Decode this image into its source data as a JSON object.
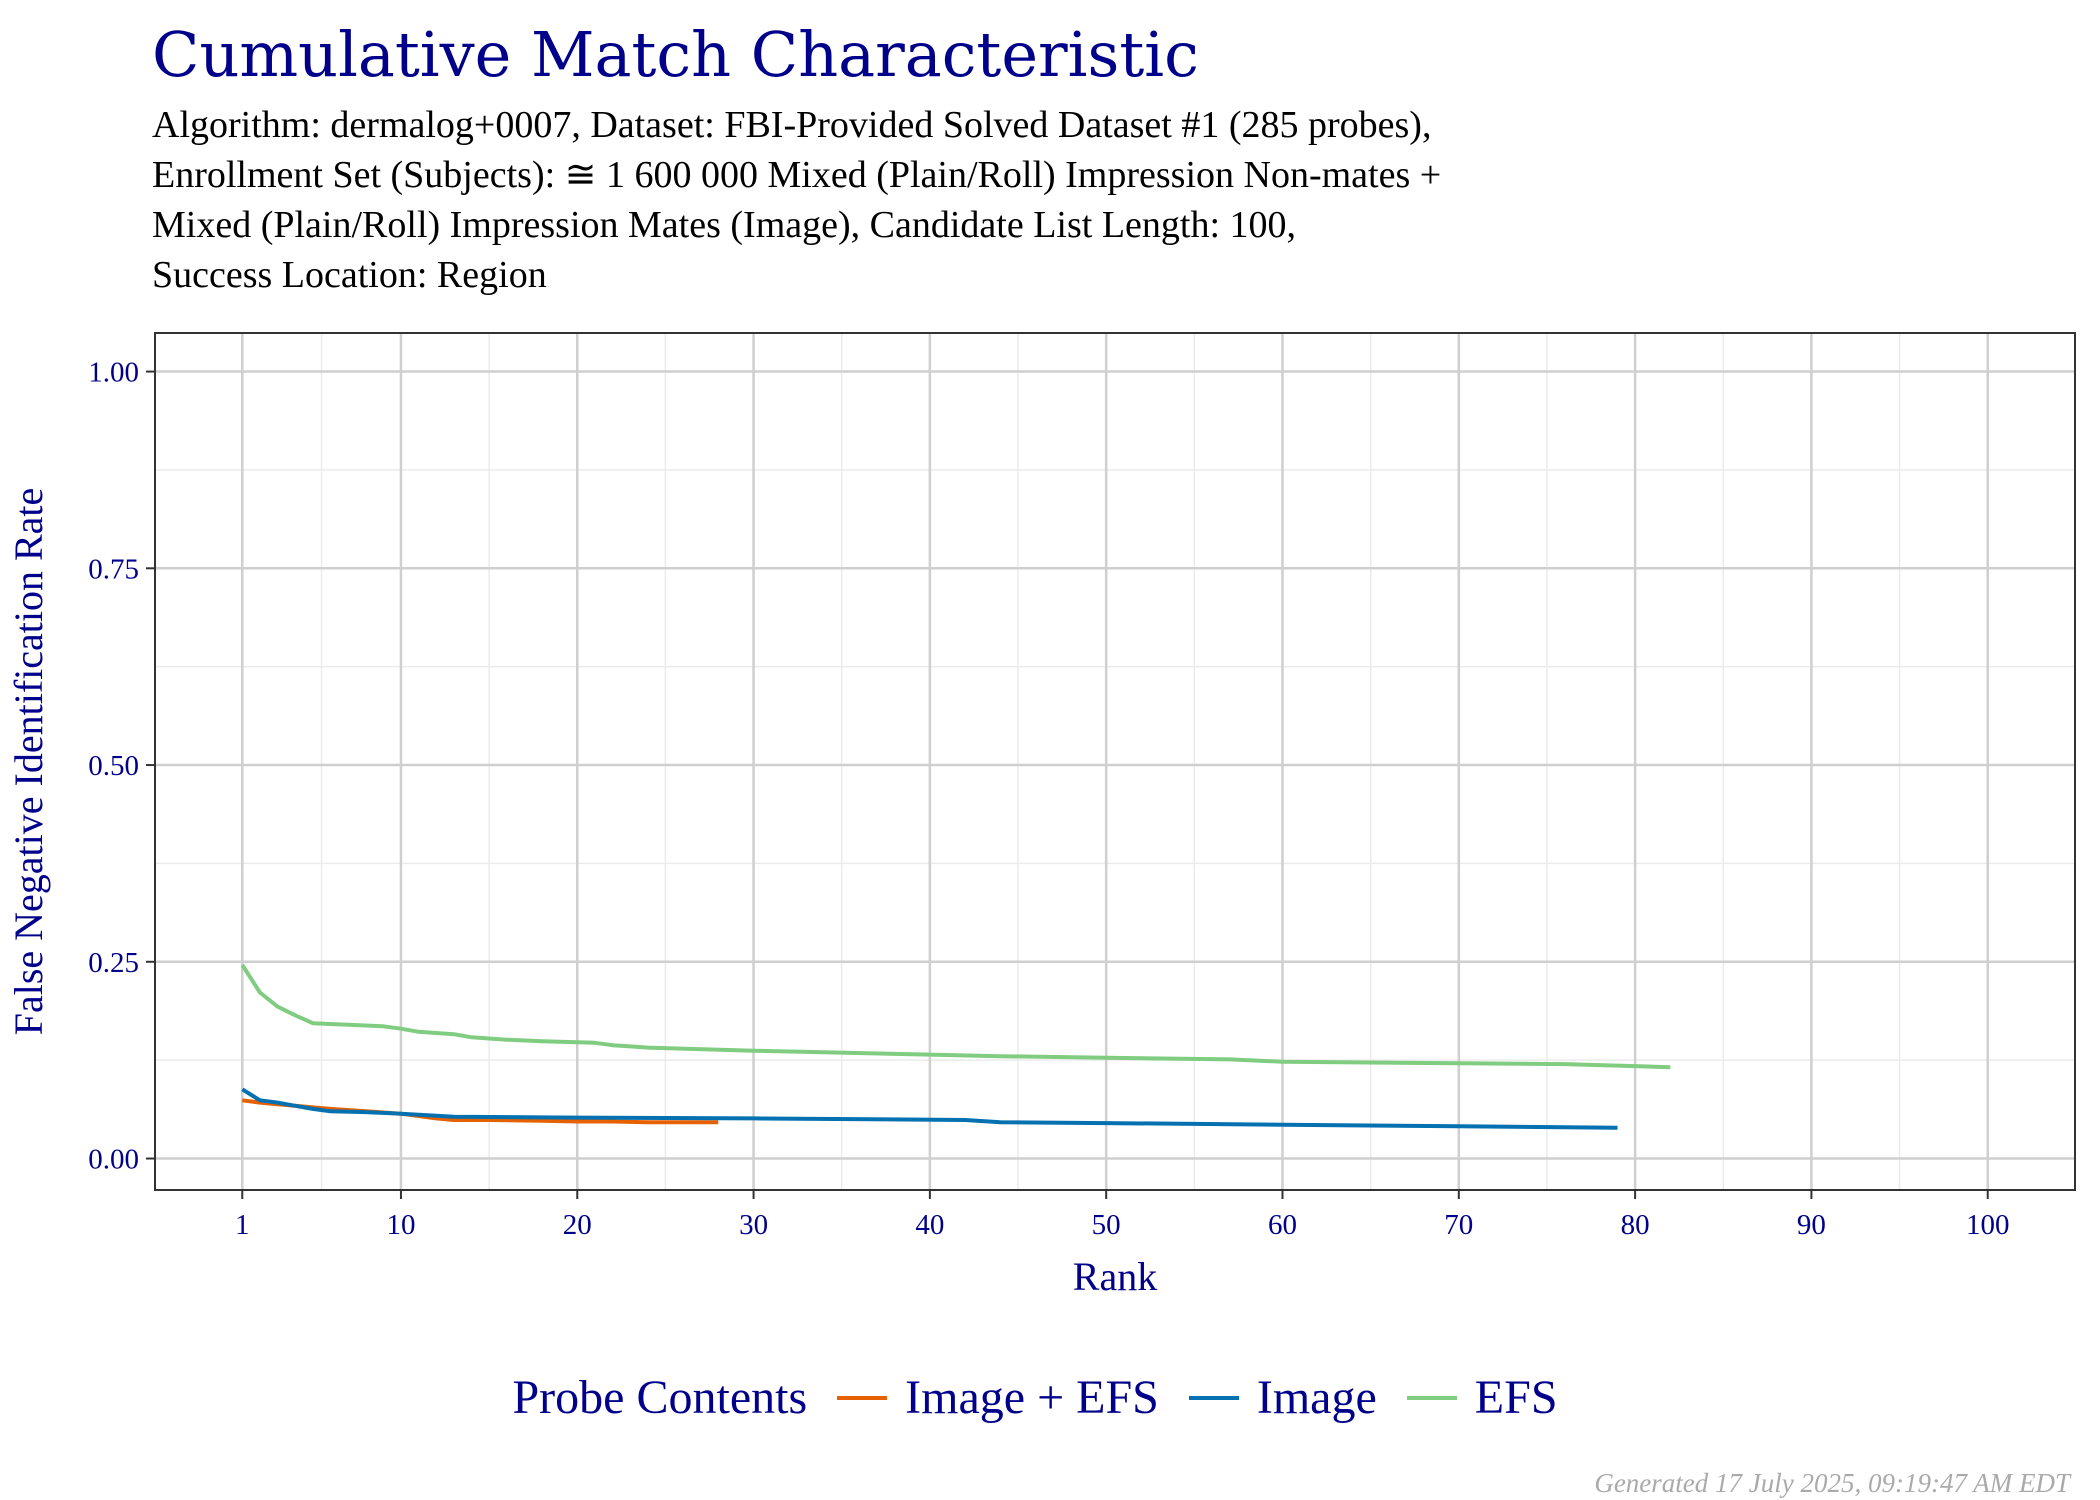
{
  "title": "Cumulative Match Characteristic",
  "subtitle_lines": [
    "Algorithm: dermalog+0007, Dataset: FBI-Provided Solved Dataset #1 (285 probes),",
    "Enrollment Set (Subjects): ≅ 1 600 000 Mixed (Plain/Roll) Impression Non-mates +",
    "Mixed (Plain/Roll) Impression Mates (Image), Candidate List Length: 100,",
    "Success Location: Region"
  ],
  "footer": "Generated 17 July 2025, 09:19:47 AM EDT",
  "legend": {
    "title": "Probe Contents",
    "placement": "bottom"
  },
  "chart_data": {
    "type": "line",
    "xlabel": "Rank",
    "ylabel": "False Negative Identification Rate",
    "xlim": [
      1,
      100
    ],
    "ylim": [
      0,
      1
    ],
    "x_ticks": [
      1,
      10,
      20,
      30,
      40,
      50,
      60,
      70,
      80,
      90,
      100
    ],
    "y_ticks": [
      "0.00",
      "0.25",
      "0.50",
      "0.75",
      "1.00"
    ],
    "grid": true,
    "series": [
      {
        "name": "Image + EFS",
        "color": "#E66101",
        "x": [
          1,
          2,
          3,
          4,
          5,
          6,
          8,
          10,
          12,
          13,
          15,
          18,
          20,
          22,
          24,
          26,
          28
        ],
        "y": [
          0.074,
          0.071,
          0.069,
          0.067,
          0.065,
          0.063,
          0.06,
          0.057,
          0.051,
          0.049,
          0.049,
          0.048,
          0.047,
          0.047,
          0.046,
          0.046,
          0.046
        ]
      },
      {
        "name": "Image",
        "color": "#0571B0",
        "x": [
          1,
          2,
          3,
          4,
          5,
          6,
          8,
          10,
          13,
          20,
          30,
          42,
          44,
          50,
          60,
          70,
          79
        ],
        "y": [
          0.088,
          0.074,
          0.071,
          0.067,
          0.063,
          0.06,
          0.059,
          0.057,
          0.053,
          0.052,
          0.051,
          0.049,
          0.046,
          0.045,
          0.043,
          0.041,
          0.039
        ]
      },
      {
        "name": "EFS",
        "color": "#80CC80",
        "x": [
          1,
          2,
          3,
          4,
          5,
          6,
          8,
          9,
          10,
          11,
          13,
          14,
          16,
          18,
          21,
          22,
          24,
          30,
          40,
          44,
          50,
          57,
          60,
          70,
          76,
          82
        ],
        "y": [
          0.246,
          0.211,
          0.193,
          0.182,
          0.172,
          0.171,
          0.169,
          0.168,
          0.165,
          0.161,
          0.158,
          0.154,
          0.151,
          0.149,
          0.147,
          0.144,
          0.141,
          0.137,
          0.132,
          0.13,
          0.128,
          0.126,
          0.123,
          0.121,
          0.12,
          0.116
        ]
      }
    ]
  }
}
